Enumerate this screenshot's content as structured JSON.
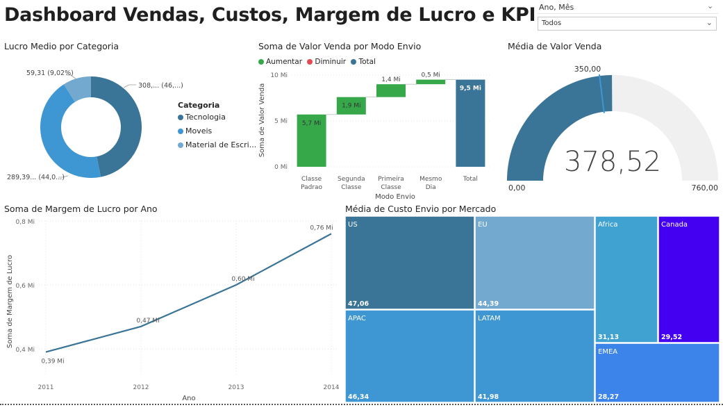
{
  "header": {
    "title": "Dashboard Vendas, Custos, Margem de Lucro e KPI"
  },
  "slicer": {
    "label": "Ano, Mês",
    "value": "Todos"
  },
  "donut": {
    "title": "Lucro Medio por Categoria",
    "legend_title": "Categoria",
    "labels": [
      "308,... (46,...)",
      "289,39... (44,0...)",
      "59,31 (9,02%)"
    ],
    "chart_data": {
      "type": "pie",
      "categories": [
        "Tecnologia",
        "Moveis",
        "Material de Escri..."
      ],
      "values": [
        46.9,
        44.08,
        9.02
      ],
      "colors": [
        "#3a7497",
        "#3e96d2",
        "#73a8cf"
      ]
    }
  },
  "waterfall": {
    "title": "Soma de Valor Venda por Modo Envio",
    "legend": [
      {
        "label": "Aumentar",
        "color": "#37a84a"
      },
      {
        "label": "Diminuir",
        "color": "#e04b54"
      },
      {
        "label": "Total",
        "color": "#3a7497"
      }
    ],
    "ylabel": "Soma de Valor Venda",
    "xlabel": "Modo Envio",
    "yticks": [
      "10 Mi",
      "5 Mi",
      "0 Mi"
    ],
    "chart_data": {
      "type": "bar",
      "categories": [
        [
          "Classe",
          "Padrao"
        ],
        [
          "Segunda",
          "Classe"
        ],
        [
          "Primeira",
          "Classe"
        ],
        [
          "Mesmo",
          "Dia"
        ],
        [
          "Total"
        ]
      ],
      "values": [
        5.7,
        1.9,
        1.4,
        0.5,
        9.5
      ],
      "labels": [
        "5,7 Mi",
        "1,9 Mi",
        "1,4 Mi",
        "0,5 Mi",
        "9,5 Mi"
      ],
      "kinds": [
        "inc",
        "inc",
        "inc",
        "inc",
        "total"
      ],
      "ylim": [
        0,
        10
      ]
    }
  },
  "gauge": {
    "title": "Média de Valor Venda",
    "value_label": "378,52",
    "min_label": "0,00",
    "max_label": "760,00",
    "target_label": "350,00",
    "chart_data": {
      "type": "gauge",
      "value": 378.52,
      "min": 0,
      "max": 760,
      "target": 350
    }
  },
  "line": {
    "title": "Soma de Margem de Lucro por Ano",
    "ylabel": "Soma de Margem de Lucro",
    "xlabel": "Ano",
    "yticks": [
      "0,8 Mi",
      "0,6 Mi",
      "0,4 Mi"
    ],
    "chart_data": {
      "type": "line",
      "x": [
        "2011",
        "2012",
        "2013",
        "2014"
      ],
      "values": [
        0.39,
        0.47,
        0.6,
        0.76
      ],
      "labels": [
        "0,39 Mi",
        "0,47 Mi",
        "0,60 Mi",
        "0,76 Mi"
      ],
      "ylim": [
        0.4,
        0.8
      ]
    }
  },
  "treemap": {
    "title": "Média de Custo Envio por Mercado",
    "chart_data": {
      "type": "treemap",
      "categories": [
        "US",
        "APAC",
        "EU",
        "LATAM",
        "Africa",
        "Canada",
        "EMEA"
      ],
      "values": [
        47.06,
        46.34,
        44.39,
        41.98,
        31.13,
        29.52,
        28.27
      ],
      "labels": [
        "47,06",
        "46,34",
        "44,39",
        "41,98",
        "31,13",
        "29,52",
        "28,27"
      ],
      "colors": [
        "#3a7497",
        "#3e96d2",
        "#73a8cf",
        "#3e96d2",
        "#40a2d0",
        "#4400f0",
        "#3d84ea"
      ]
    }
  }
}
